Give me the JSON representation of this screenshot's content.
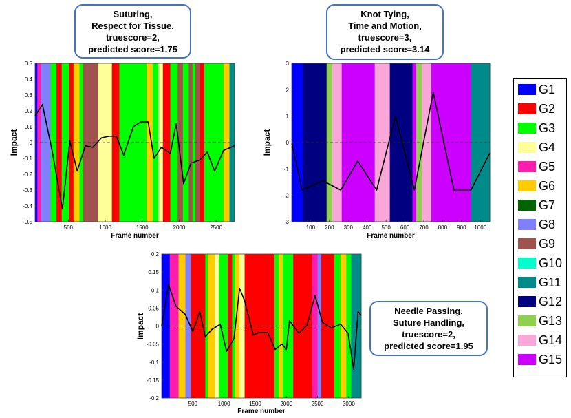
{
  "chart_data": [
    {
      "type": "line",
      "callout": [
        "Suturing,",
        "Respect for Tissue,",
        "truescore=2,",
        "predicted score=1.75"
      ],
      "xlabel": "Frame number",
      "ylabel": "Impact",
      "xlim": [
        50,
        2750
      ],
      "ylim": [
        -0.5,
        0.5
      ],
      "xticks": [
        500,
        1000,
        1500,
        2000,
        2500
      ],
      "yticks": [
        -0.5,
        -0.4,
        -0.3,
        -0.2,
        -0.1,
        0,
        0.1,
        0.2,
        0.3,
        0.4,
        0.5
      ],
      "segments": [
        {
          "from": 50,
          "to": 80,
          "g": "G1"
        },
        {
          "from": 80,
          "to": 130,
          "g": "G5"
        },
        {
          "from": 130,
          "to": 260,
          "g": "G8"
        },
        {
          "from": 260,
          "to": 340,
          "g": "G3"
        },
        {
          "from": 340,
          "to": 410,
          "g": "G2"
        },
        {
          "from": 410,
          "to": 510,
          "g": "G3"
        },
        {
          "from": 510,
          "to": 570,
          "g": "G2"
        },
        {
          "from": 570,
          "to": 650,
          "g": "G6"
        },
        {
          "from": 650,
          "to": 700,
          "g": "G3"
        },
        {
          "from": 700,
          "to": 900,
          "g": "G9"
        },
        {
          "from": 900,
          "to": 1090,
          "g": "G4"
        },
        {
          "from": 1090,
          "to": 1190,
          "g": "G2"
        },
        {
          "from": 1190,
          "to": 1560,
          "g": "G3"
        },
        {
          "from": 1560,
          "to": 1640,
          "g": "G6"
        },
        {
          "from": 1640,
          "to": 1720,
          "g": "G3"
        },
        {
          "from": 1720,
          "to": 1780,
          "g": "G4"
        },
        {
          "from": 1780,
          "to": 1880,
          "g": "G2"
        },
        {
          "from": 1880,
          "to": 1980,
          "g": "G3"
        },
        {
          "from": 1980,
          "to": 2050,
          "g": "G9"
        },
        {
          "from": 2050,
          "to": 2130,
          "g": "G3"
        },
        {
          "from": 2130,
          "to": 2180,
          "g": "G9"
        },
        {
          "from": 2180,
          "to": 2220,
          "g": "G3"
        },
        {
          "from": 2220,
          "to": 2280,
          "g": "G9"
        },
        {
          "from": 2280,
          "to": 2340,
          "g": "G2"
        },
        {
          "from": 2340,
          "to": 2600,
          "g": "G3"
        },
        {
          "from": 2600,
          "to": 2680,
          "g": "G6"
        },
        {
          "from": 2680,
          "to": 2750,
          "g": "G11"
        }
      ],
      "x": [
        50,
        150,
        280,
        420,
        520,
        620,
        730,
        830,
        950,
        1050,
        1150,
        1250,
        1380,
        1480,
        1580,
        1660,
        1760,
        1880,
        1960,
        2060,
        2160,
        2280,
        2380,
        2480,
        2600,
        2750
      ],
      "y": [
        0.17,
        0.24,
        -0.05,
        -0.42,
        0.01,
        -0.18,
        -0.02,
        -0.03,
        0.03,
        0.04,
        0.04,
        -0.08,
        0.1,
        0.13,
        0.13,
        -0.1,
        -0.03,
        -0.07,
        0.12,
        -0.26,
        -0.13,
        -0.11,
        -0.06,
        -0.18,
        -0.05,
        -0.02
      ]
    },
    {
      "type": "line",
      "callout": [
        "Knot Tying,",
        "Time and Motion,",
        "truescore=3,",
        "predicted score=3.14"
      ],
      "xlabel": "Frame number",
      "ylabel": "Impact",
      "xlim": [
        0,
        1050
      ],
      "ylim": [
        -3,
        3
      ],
      "xticks": [
        100,
        200,
        300,
        400,
        500,
        600,
        700,
        800,
        900,
        1000
      ],
      "yticks": [
        -3,
        -2,
        -1,
        0,
        1,
        2,
        3
      ],
      "segments": [
        {
          "from": 0,
          "to": 60,
          "g": "G1"
        },
        {
          "from": 60,
          "to": 185,
          "g": "G12"
        },
        {
          "from": 185,
          "to": 215,
          "g": "G13"
        },
        {
          "from": 215,
          "to": 265,
          "g": "G14"
        },
        {
          "from": 265,
          "to": 440,
          "g": "G15"
        },
        {
          "from": 440,
          "to": 520,
          "g": "G14"
        },
        {
          "from": 520,
          "to": 640,
          "g": "G12"
        },
        {
          "from": 640,
          "to": 660,
          "g": "G15"
        },
        {
          "from": 660,
          "to": 690,
          "g": "G13"
        },
        {
          "from": 690,
          "to": 740,
          "g": "G14"
        },
        {
          "from": 740,
          "to": 950,
          "g": "G15"
        },
        {
          "from": 950,
          "to": 1050,
          "g": "G11"
        }
      ],
      "x": [
        0,
        55,
        165,
        260,
        350,
        450,
        550,
        650,
        750,
        860,
        950,
        1050
      ],
      "y": [
        0,
        -1.8,
        -1.45,
        -1.8,
        -0.7,
        -1.8,
        1.0,
        -1.8,
        1.9,
        -1.8,
        -1.8,
        -0.4
      ]
    },
    {
      "type": "line",
      "callout": [
        "Needle Passing,",
        "Suture Handling,",
        "truescore=2,",
        "predicted score=1.95"
      ],
      "xlabel": "Frame number",
      "ylabel": "Impact",
      "xlim": [
        0,
        3200
      ],
      "ylim": [
        -0.2,
        0.2
      ],
      "xticks": [
        500,
        1000,
        1500,
        2000,
        2500,
        3000
      ],
      "yticks": [
        -0.2,
        -0.15,
        -0.1,
        -0.05,
        0,
        0.05,
        0.1,
        0.15,
        0.2
      ],
      "segments": [
        {
          "from": 0,
          "to": 130,
          "g": "G1"
        },
        {
          "from": 130,
          "to": 270,
          "g": "G5"
        },
        {
          "from": 270,
          "to": 380,
          "g": "G6"
        },
        {
          "from": 380,
          "to": 470,
          "g": "G8"
        },
        {
          "from": 470,
          "to": 700,
          "g": "G2"
        },
        {
          "from": 700,
          "to": 740,
          "g": "G3"
        },
        {
          "from": 740,
          "to": 850,
          "g": "G6"
        },
        {
          "from": 850,
          "to": 920,
          "g": "G4"
        },
        {
          "from": 920,
          "to": 1060,
          "g": "G3"
        },
        {
          "from": 1060,
          "to": 1130,
          "g": "G2"
        },
        {
          "from": 1130,
          "to": 1180,
          "g": "G3"
        },
        {
          "from": 1180,
          "to": 1250,
          "g": "G6"
        },
        {
          "from": 1250,
          "to": 1330,
          "g": "G4"
        },
        {
          "from": 1330,
          "to": 1810,
          "g": "G2"
        },
        {
          "from": 1810,
          "to": 1880,
          "g": "G3"
        },
        {
          "from": 1880,
          "to": 1940,
          "g": "G6"
        },
        {
          "from": 1940,
          "to": 2110,
          "g": "G3"
        },
        {
          "from": 2110,
          "to": 2410,
          "g": "G2"
        },
        {
          "from": 2410,
          "to": 2500,
          "g": "G5"
        },
        {
          "from": 2500,
          "to": 2560,
          "g": "G8"
        },
        {
          "from": 2560,
          "to": 2770,
          "g": "G2"
        },
        {
          "from": 2770,
          "to": 2870,
          "g": "G3"
        },
        {
          "from": 2870,
          "to": 2960,
          "g": "G6"
        },
        {
          "from": 2960,
          "to": 3040,
          "g": "G3"
        },
        {
          "from": 3040,
          "to": 3200,
          "g": "G11"
        }
      ],
      "x": [
        0,
        110,
        230,
        380,
        500,
        610,
        700,
        800,
        940,
        1040,
        1160,
        1250,
        1330,
        1470,
        1560,
        1700,
        1820,
        1930,
        2000,
        2050,
        2200,
        2330,
        2460,
        2580,
        2720,
        2870,
        2990,
        3080,
        3150,
        3200
      ],
      "y": [
        0,
        0.115,
        0.055,
        0.032,
        -0.015,
        0.04,
        -0.03,
        -0.01,
        0.005,
        -0.07,
        -0.035,
        0.105,
        0.07,
        -0.025,
        -0.018,
        -0.018,
        -0.065,
        -0.05,
        -0.065,
        0.015,
        -0.02,
        0.002,
        0.085,
        0.01,
        -0.005,
        0.005,
        -0.02,
        -0.12,
        0.04,
        0.03
      ]
    }
  ],
  "legend": [
    {
      "label": "G1",
      "color": "#0000ff"
    },
    {
      "label": "G2",
      "color": "#ff0000"
    },
    {
      "label": "G3",
      "color": "#00ff00"
    },
    {
      "label": "G4",
      "color": "#ffff99"
    },
    {
      "label": "G5",
      "color": "#ff1cae"
    },
    {
      "label": "G6",
      "color": "#ffcc00"
    },
    {
      "label": "G7",
      "color": "#006400"
    },
    {
      "label": "G8",
      "color": "#8080ff"
    },
    {
      "label": "G9",
      "color": "#a0524c"
    },
    {
      "label": "G10",
      "color": "#00ffcc"
    },
    {
      "label": "G11",
      "color": "#008b8b"
    },
    {
      "label": "G12",
      "color": "#000080"
    },
    {
      "label": "G13",
      "color": "#8fd14f"
    },
    {
      "label": "G14",
      "color": "#f9a6d9"
    },
    {
      "label": "G15",
      "color": "#cc00ff"
    }
  ]
}
